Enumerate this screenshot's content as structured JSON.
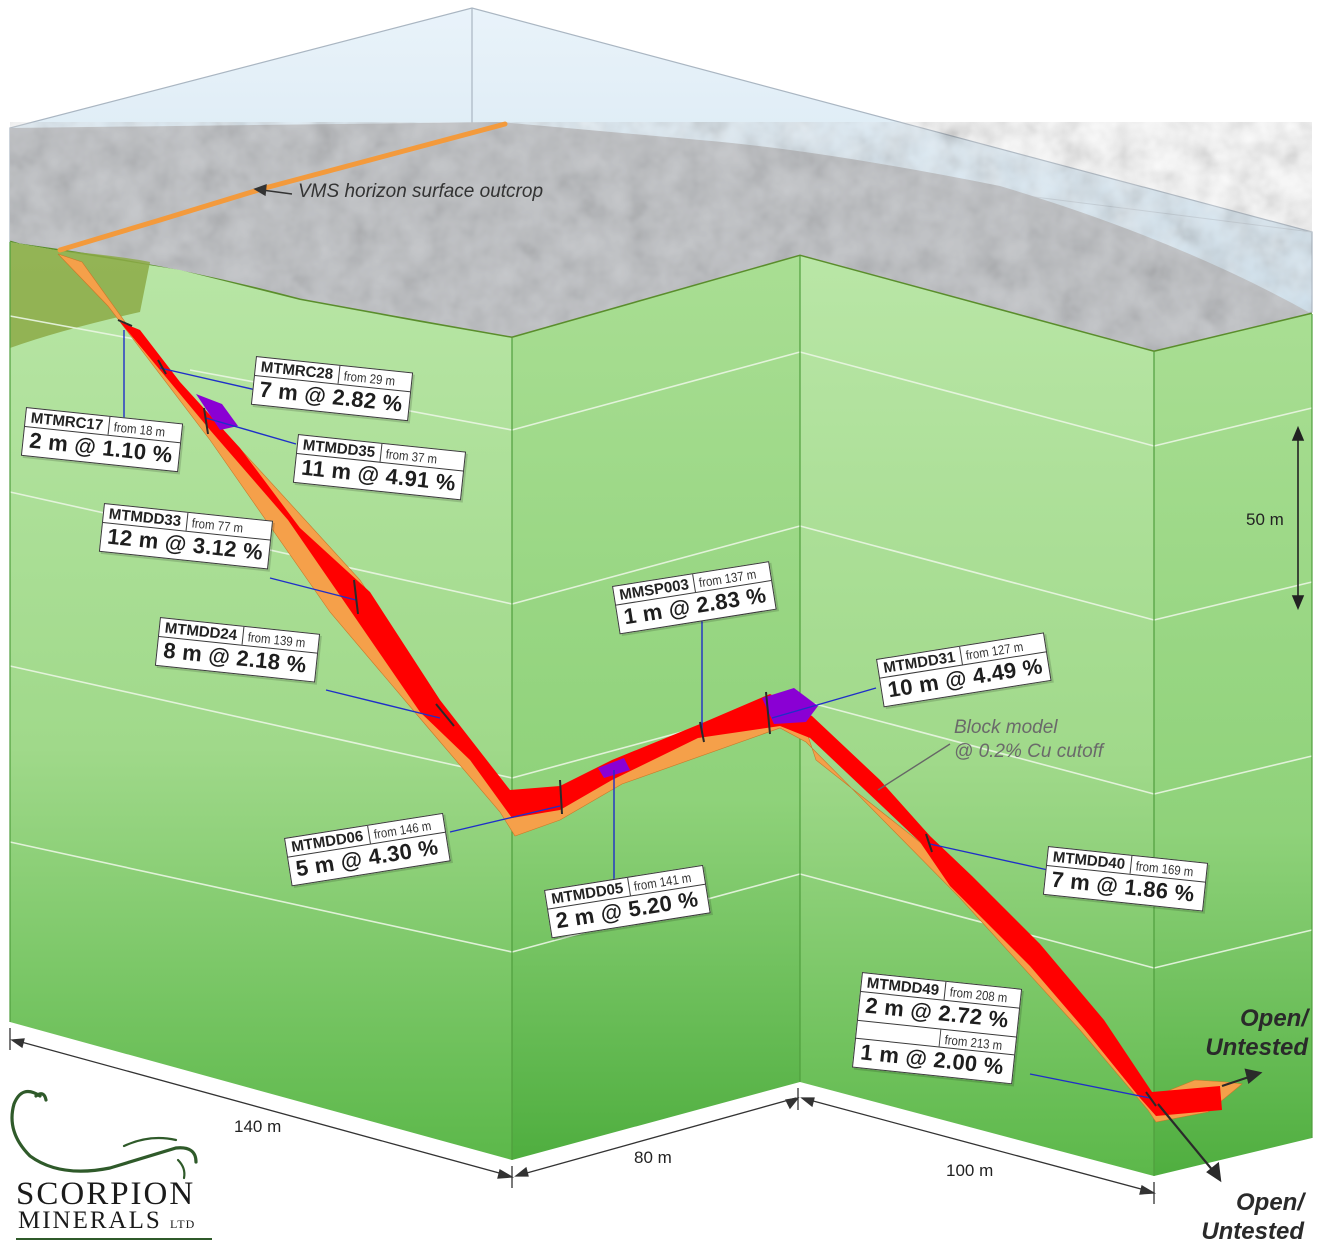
{
  "annotations": {
    "outcrop": "VMS horizon surface outcrop",
    "block_model_line1": "Block model",
    "block_model_line2": "@ 0.2% Cu cutoff"
  },
  "dimensions": {
    "scale_bar": "50 m",
    "segment_1": "140 m",
    "segment_2": "80 m",
    "segment_3": "100 m"
  },
  "open_labels": {
    "right": [
      "Open/",
      "Untested"
    ],
    "bottom": [
      "Open/",
      "Untested"
    ]
  },
  "intercepts": [
    {
      "hole": "MTMRC17",
      "from": "from 18 m",
      "value": "2 m @ 1.10 %"
    },
    {
      "hole": "MTMRC28",
      "from": "from 29 m",
      "value": "7 m @ 2.82 %"
    },
    {
      "hole": "MTMDD35",
      "from": "from 37 m",
      "value": "11 m @ 4.91 %"
    },
    {
      "hole": "MTMDD33",
      "from": "from 77 m",
      "value": "12 m @ 3.12 %"
    },
    {
      "hole": "MTMDD24",
      "from": "from 139 m",
      "value": "8 m @ 2.18 %"
    },
    {
      "hole": "MTMDD06",
      "from": "from 146 m",
      "value": "5 m @ 4.30 %"
    },
    {
      "hole": "MTMDD05",
      "from": "from 141 m",
      "value": "2 m @ 5.20 %"
    },
    {
      "hole": "MMSP003",
      "from": "from 137 m",
      "value": "1 m @ 2.83 %"
    },
    {
      "hole": "MTMDD31",
      "from": "from 127 m",
      "value": "10 m @ 4.49 %"
    },
    {
      "hole": "MTMDD40",
      "from": "from 169 m",
      "value": "7 m @ 1.86 %"
    },
    {
      "hole": "MTMDD49",
      "from": "from 208 m",
      "value": "2 m @ 2.72 %",
      "from2": "from 213 m",
      "value2": "1 m @ 2.00 %"
    }
  ],
  "logo": {
    "line1": "SCORPION",
    "line2": "MINERALS",
    "line3": "LTD"
  },
  "colors": {
    "ore": "#ff0000",
    "high_grade": "#8a00d4",
    "halo": "#f5a04a",
    "outcrop_line": "#f39a3c",
    "drill_trace": "#1f2fc8",
    "ground": "#7fcf6a"
  }
}
